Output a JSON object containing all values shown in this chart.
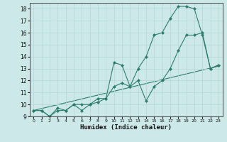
{
  "xlabel": "Humidex (Indice chaleur)",
  "background_color": "#cce8e8",
  "grid_color": "#b8d8d8",
  "line_color": "#2e7d6e",
  "xlim": [
    -0.5,
    23.5
  ],
  "ylim": [
    9,
    18.5
  ],
  "yticks": [
    9,
    10,
    11,
    12,
    13,
    14,
    15,
    16,
    17,
    18
  ],
  "xticks": [
    0,
    1,
    2,
    3,
    4,
    5,
    6,
    7,
    8,
    9,
    10,
    11,
    12,
    13,
    14,
    15,
    16,
    17,
    18,
    19,
    20,
    21,
    22,
    23
  ],
  "series": [
    {
      "x": [
        0,
        1,
        2,
        3,
        4,
        5,
        6,
        7,
        8,
        9,
        10,
        11,
        12,
        13,
        14,
        15,
        16,
        17,
        18,
        19,
        20,
        21,
        22,
        23
      ],
      "y": [
        9.5,
        9.5,
        9.0,
        9.5,
        9.5,
        10.0,
        10.0,
        10.0,
        10.5,
        10.5,
        13.5,
        13.3,
        11.5,
        13.0,
        14.0,
        15.8,
        16.0,
        17.2,
        18.2,
        18.2,
        18.0,
        15.8,
        13.0,
        13.3
      ],
      "has_markers": true
    },
    {
      "x": [
        0,
        1,
        2,
        3,
        4,
        5,
        6,
        7,
        8,
        9,
        10,
        11,
        12,
        13,
        14,
        15,
        16,
        17,
        18,
        19,
        20,
        21,
        22,
        23
      ],
      "y": [
        9.5,
        9.5,
        9.0,
        9.7,
        9.5,
        10.0,
        9.5,
        10.0,
        10.2,
        10.5,
        11.5,
        11.8,
        11.5,
        12.0,
        10.3,
        11.5,
        12.0,
        13.0,
        14.5,
        15.8,
        15.8,
        16.0,
        13.0,
        13.3
      ],
      "has_markers": true
    },
    {
      "x": [
        0,
        23
      ],
      "y": [
        9.5,
        13.2
      ],
      "has_markers": false
    }
  ]
}
